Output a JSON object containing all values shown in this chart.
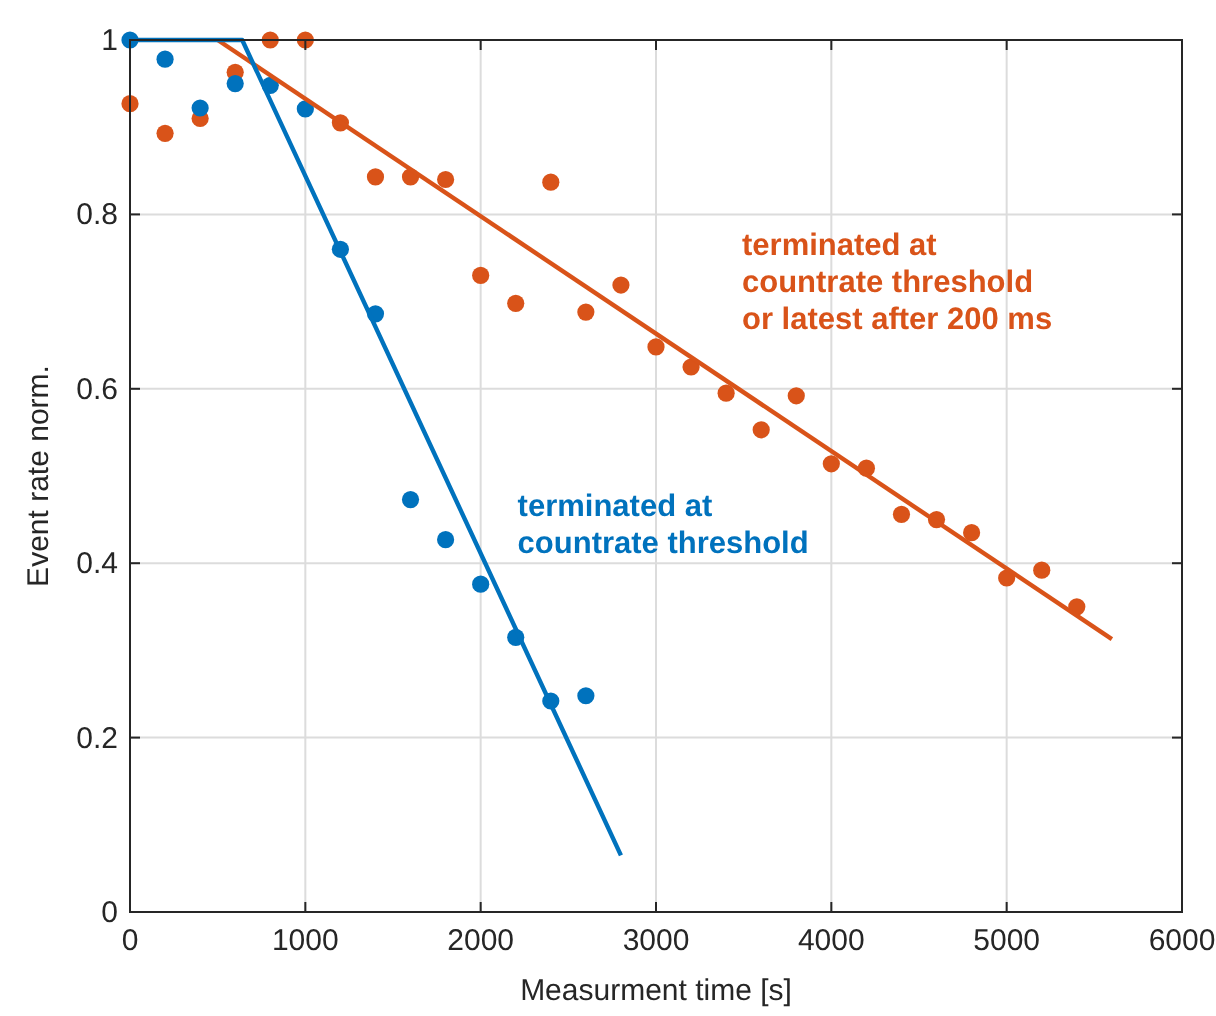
{
  "chart_data": {
    "type": "scatter",
    "xlabel": "Measurment time [s]",
    "ylabel": "Event rate norm.",
    "xlim": [
      0,
      6000
    ],
    "ylim": [
      0,
      1
    ],
    "xticks": [
      0,
      1000,
      2000,
      3000,
      4000,
      5000,
      6000
    ],
    "yticks": [
      0,
      0.2,
      0.4,
      0.6,
      0.8,
      1
    ],
    "grid": true,
    "marker": "circle",
    "series": [
      {
        "name": "terminated at\ncountrate threshold",
        "color": "#0072bd",
        "x": [
          0,
          200,
          400,
          600,
          800,
          1000,
          1200,
          1400,
          1600,
          1800,
          2000,
          2200,
          2400,
          2600
        ],
        "values": [
          1.0,
          0.978,
          0.922,
          0.95,
          0.948,
          0.921,
          0.76,
          0.686,
          0.473,
          0.427,
          0.376,
          0.315,
          0.242,
          0.248
        ]
      },
      {
        "name": "terminated at\ncountrate threshold\nor latest after 200 ms",
        "color": "#d95319",
        "x": [
          0,
          200,
          400,
          600,
          800,
          1000,
          1200,
          1400,
          1600,
          1800,
          2000,
          2200,
          2400,
          2600,
          2800,
          3000,
          3200,
          3400,
          3600,
          3800,
          4000,
          4200,
          4400,
          4600,
          4800,
          5000,
          5200,
          5400
        ],
        "values": [
          0.927,
          0.893,
          0.91,
          0.963,
          1.0,
          1.0,
          0.905,
          0.843,
          0.843,
          0.84,
          0.73,
          0.698,
          0.837,
          0.688,
          0.719,
          0.648,
          0.625,
          0.595,
          0.553,
          0.592,
          0.514,
          0.509,
          0.456,
          0.45,
          0.435,
          0.383,
          0.392,
          0.35
        ]
      },
      {
        "type": "line",
        "marker": "none",
        "color": "#0072bd",
        "x": [
          0,
          640,
          2800
        ],
        "values": [
          1,
          1,
          0.065
        ]
      },
      {
        "type": "line",
        "marker": "none",
        "color": "#d95319",
        "x": [
          500,
          5600
        ],
        "values": [
          1,
          0.313
        ]
      }
    ]
  }
}
